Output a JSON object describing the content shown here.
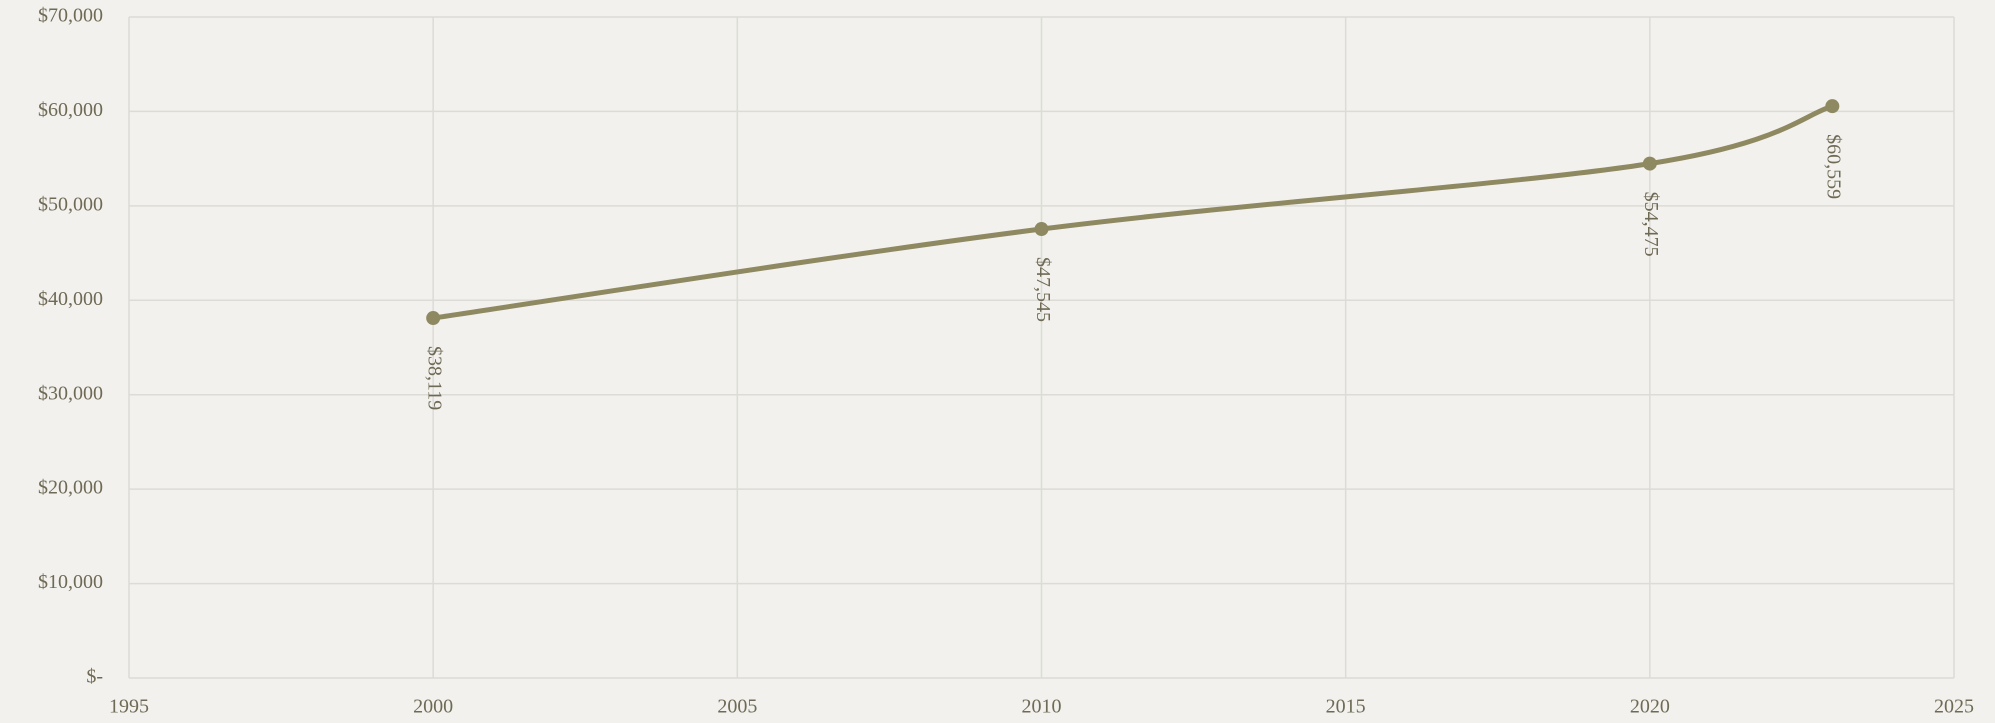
{
  "chart_data": {
    "type": "line",
    "x": [
      2000,
      2010,
      2020,
      2023
    ],
    "series": [
      {
        "color": "#8f8961",
        "values": [
          38119,
          47545,
          54475,
          60559
        ],
        "value_labels": [
          "$38,119",
          "$47,545",
          "$54,475",
          "$60,559"
        ]
      }
    ],
    "xlim": [
      1995,
      2025
    ],
    "xticks": [
      1995,
      2000,
      2005,
      2010,
      2015,
      2020,
      2025
    ],
    "ylim": [
      0,
      70000
    ],
    "yticks": [
      {
        "value": 0,
        "label": "$-"
      },
      {
        "value": 10000,
        "label": "$10,000"
      },
      {
        "value": 20000,
        "label": "$20,000"
      },
      {
        "value": 30000,
        "label": "$30,000"
      },
      {
        "value": 40000,
        "label": "$40,000"
      },
      {
        "value": 50000,
        "label": "$50,000"
      },
      {
        "value": 60000,
        "label": "$60,000"
      },
      {
        "value": 70000,
        "label": "$70,000"
      }
    ],
    "grid": true
  }
}
